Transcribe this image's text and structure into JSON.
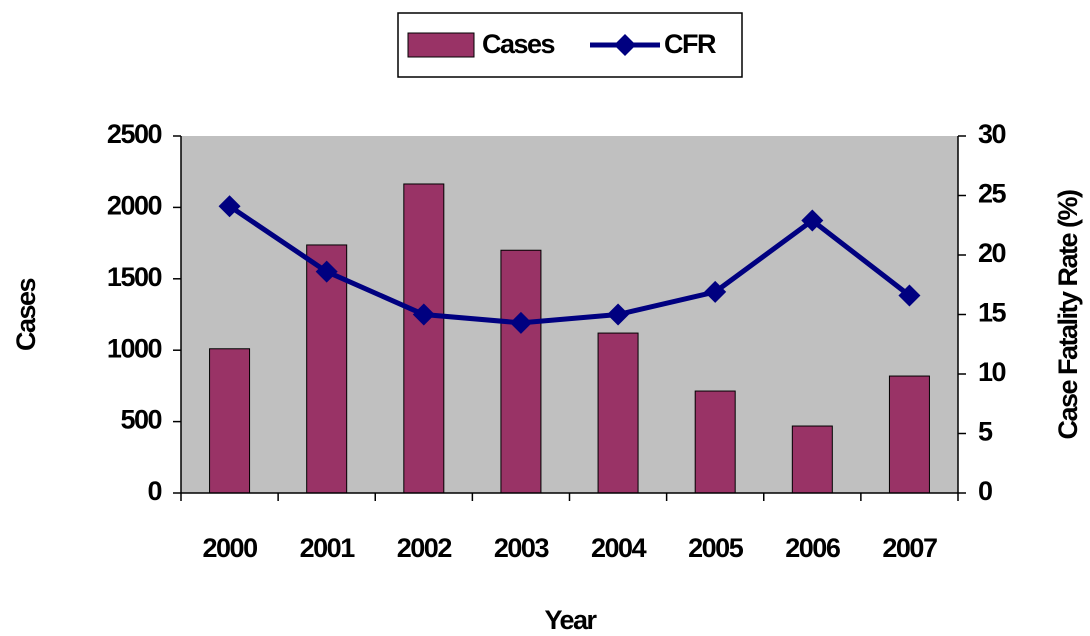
{
  "chart_data": {
    "type": "bar-line",
    "x_label": "Year",
    "y_label": "Cases",
    "y2_label": "Case Fatality Rate (%)",
    "categories": [
      "2000",
      "2001",
      "2002",
      "2003",
      "2004",
      "2005",
      "2006",
      "2007"
    ],
    "series": [
      {
        "name": "Cases",
        "type": "bar",
        "color": "#993366",
        "values": [
          1010,
          1737,
          2164,
          1700,
          1120,
          714,
          469,
          819
        ]
      },
      {
        "name": "CFR",
        "type": "line",
        "axis": "y2",
        "color": "#000080",
        "values": [
          24.1,
          18.6,
          15.0,
          14.3,
          15.0,
          16.9,
          22.9,
          16.6
        ]
      }
    ],
    "ylim": [
      0,
      2500
    ],
    "yticks": [
      0,
      500,
      1000,
      1500,
      2000,
      2500
    ],
    "y2lim": [
      0,
      30
    ],
    "y2ticks": [
      0,
      5,
      10,
      15,
      20,
      25,
      30
    ],
    "plot_background": "#c0c0c0",
    "legend": "top"
  }
}
